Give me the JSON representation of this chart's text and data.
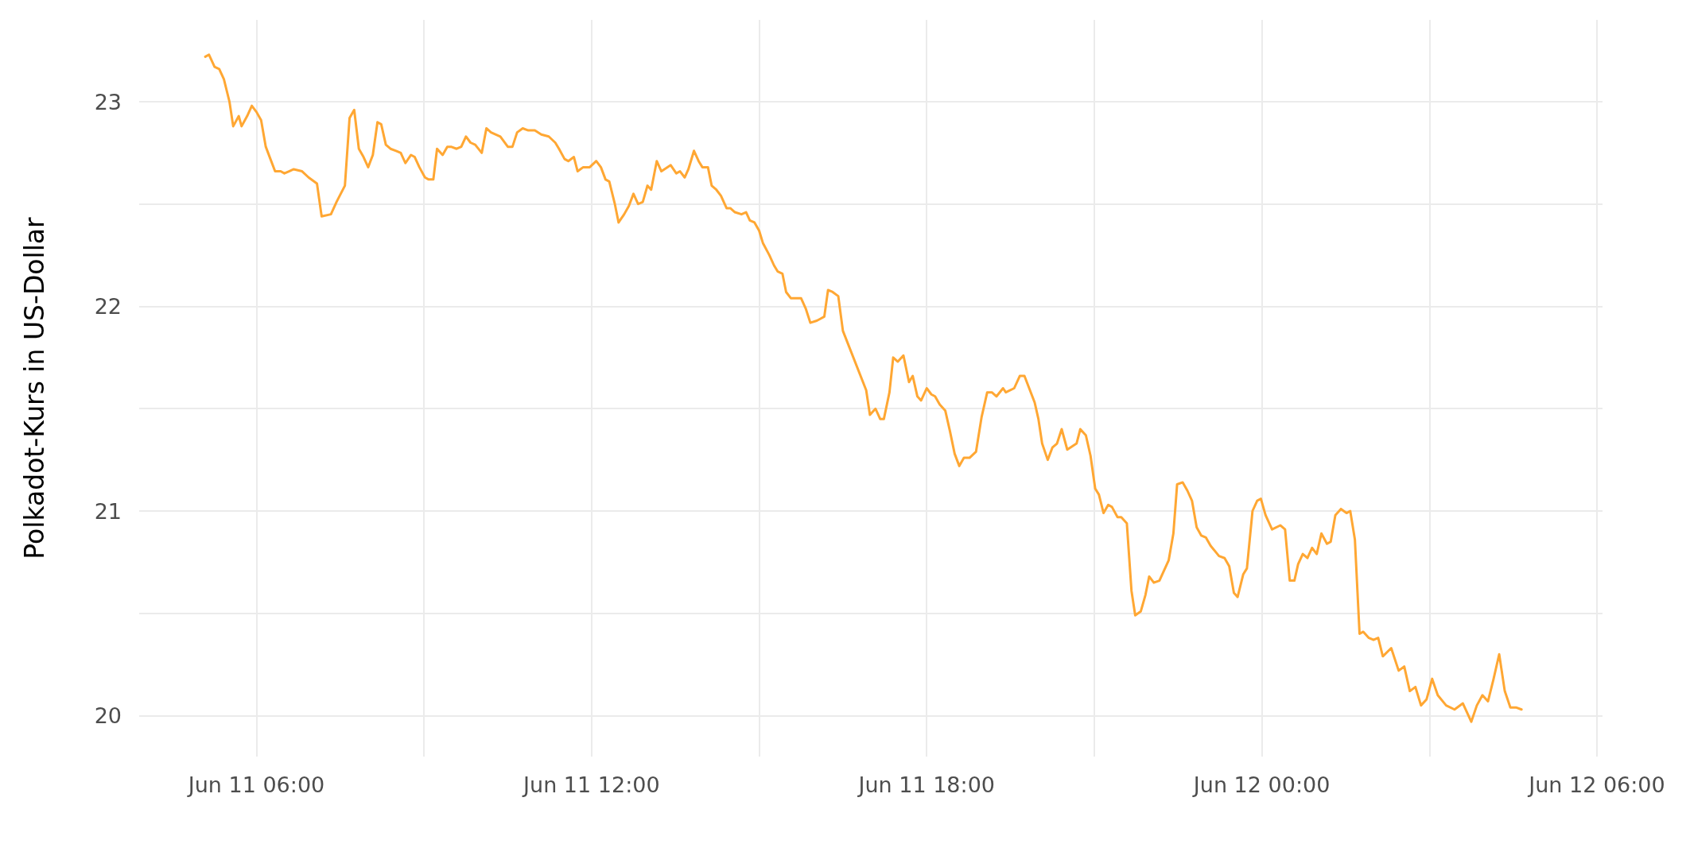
{
  "chart_data": {
    "type": "line",
    "ylabel": "Polkadot-Kurs in US-Dollar",
    "x": [
      "--06-11T05:05",
      "--06-11T05:09",
      "--06-11T05:15",
      "--06-11T05:20",
      "--06-11T05:25",
      "--06-11T05:31",
      "--06-11T05:35",
      "--06-11T05:41",
      "--06-11T05:44",
      "--06-11T05:50",
      "--06-11T05:55",
      "--06-11T06:00",
      "--06-11T06:05",
      "--06-11T06:10",
      "--06-11T06:15",
      "--06-11T06:20",
      "--06-11T06:26",
      "--06-11T06:30",
      "--06-11T06:35",
      "--06-11T06:40",
      "--06-11T06:49",
      "--06-11T06:56",
      "--06-11T07:05",
      "--06-11T07:10",
      "--06-11T07:20",
      "--06-11T07:26",
      "--06-11T07:35",
      "--06-11T07:40",
      "--06-11T07:45",
      "--06-11T07:50",
      "--06-11T07:55",
      "--06-11T08:00",
      "--06-11T08:05",
      "--06-11T08:10",
      "--06-11T08:14",
      "--06-11T08:19",
      "--06-11T08:24",
      "--06-11T08:30",
      "--06-11T08:35",
      "--06-11T08:40",
      "--06-11T08:46",
      "--06-11T08:50",
      "--06-11T08:55",
      "--06-11T09:01",
      "--06-11T09:05",
      "--06-11T09:10",
      "--06-11T09:14",
      "--06-11T09:20",
      "--06-11T09:25",
      "--06-11T09:29",
      "--06-11T09:35",
      "--06-11T09:40",
      "--06-11T09:45",
      "--06-11T09:50",
      "--06-11T09:55",
      "--06-11T10:02",
      "--06-11T10:07",
      "--06-11T10:12",
      "--06-11T10:22",
      "--06-11T10:30",
      "--06-11T10:35",
      "--06-11T10:40",
      "--06-11T10:46",
      "--06-11T10:52",
      "--06-11T10:59",
      "--06-11T11:06",
      "--06-11T11:14",
      "--06-11T11:21",
      "--06-11T11:25",
      "--06-11T11:31",
      "--06-11T11:35",
      "--06-11T11:41",
      "--06-11T11:45",
      "--06-11T11:51",
      "--06-11T11:58",
      "--06-11T12:05",
      "--06-11T12:10",
      "--06-11T12:15",
      "--06-11T12:19",
      "--06-11T12:25",
      "--06-11T12:29",
      "--06-11T12:35",
      "--06-11T12:40",
      "--06-11T12:45",
      "--06-11T12:50",
      "--06-11T12:55",
      "--06-11T13:00",
      "--06-11T13:04",
      "--06-11T13:10",
      "--06-11T13:15",
      "--06-11T13:25",
      "--06-11T13:31",
      "--06-11T13:35",
      "--06-11T13:40",
      "--06-11T13:44",
      "--06-11T13:50",
      "--06-11T13:55",
      "--06-11T13:59",
      "--06-11T14:05",
      "--06-11T14:09",
      "--06-11T14:14",
      "--06-11T14:19",
      "--06-11T14:25",
      "--06-11T14:29",
      "--06-11T14:34",
      "--06-11T14:41",
      "--06-11T14:46",
      "--06-11T14:50",
      "--06-11T14:55",
      "--06-11T15:00",
      "--06-11T15:04",
      "--06-11T15:11",
      "--06-11T15:16",
      "--06-11T15:20",
      "--06-11T15:25",
      "--06-11T15:29",
      "--06-11T15:34",
      "--06-11T15:45",
      "--06-11T15:50",
      "--06-11T15:55",
      "--06-11T16:02",
      "--06-11T16:06",
      "--06-11T16:10",
      "--06-11T16:14",
      "--06-11T16:19",
      "--06-11T16:25",
      "--06-11T16:30",
      "--06-11T16:55",
      "--06-11T16:59",
      "--06-11T17:05",
      "--06-11T17:10",
      "--06-11T17:14",
      "--06-11T17:20",
      "--06-11T17:24",
      "--06-11T17:29",
      "--06-11T17:35",
      "--06-11T17:41",
      "--06-11T17:45",
      "--06-11T17:50",
      "--06-11T17:54",
      "--06-11T18:00",
      "--06-11T18:05",
      "--06-11T18:09",
      "--06-11T18:14",
      "--06-11T18:20",
      "--06-11T18:25",
      "--06-11T18:30",
      "--06-11T18:35",
      "--06-11T18:40",
      "--06-11T18:46",
      "--06-11T18:53",
      "--06-11T18:59",
      "--06-11T19:05",
      "--06-11T19:10",
      "--06-11T19:15",
      "--06-11T19:22",
      "--06-11T19:25",
      "--06-11T19:34",
      "--06-11T19:40",
      "--06-11T19:45",
      "--06-11T19:56",
      "--06-11T20:00",
      "--06-11T20:04",
      "--06-11T20:10",
      "--06-11T20:15",
      "--06-11T20:20",
      "--06-11T20:25",
      "--06-11T20:31",
      "--06-11T20:41",
      "--06-11T20:45",
      "--06-11T20:51",
      "--06-11T20:56",
      "--06-11T21:01",
      "--06-11T21:05",
      "--06-11T21:10",
      "--06-11T21:15",
      "--06-11T21:19",
      "--06-11T21:25",
      "--06-11T21:29",
      "--06-11T21:35",
      "--06-11T21:40",
      "--06-11T21:44",
      "--06-11T21:50",
      "--06-11T21:55",
      "--06-11T21:59",
      "--06-11T22:04",
      "--06-11T22:10",
      "--06-11T22:20",
      "--06-11T22:25",
      "--06-11T22:29",
      "--06-11T22:35",
      "--06-11T22:40",
      "--06-11T22:45",
      "--06-11T22:50",
      "--06-11T22:55",
      "--06-11T23:00",
      "--06-11T23:05",
      "--06-11T23:14",
      "--06-11T23:20",
      "--06-11T23:25",
      "--06-11T23:30",
      "--06-11T23:34",
      "--06-11T23:40",
      "--06-11T23:44",
      "--06-11T23:50",
      "--06-11T23:55",
      "--06-11T23:59",
      "--06-12T00:04",
      "--06-12T00:11",
      "--06-12T00:20",
      "--06-12T00:25",
      "--06-12T00:30",
      "--06-12T00:35",
      "--06-12T00:39",
      "--06-12T00:44",
      "--06-12T00:49",
      "--06-12T00:54",
      "--06-12T00:59",
      "--06-12T01:04",
      "--06-12T01:10",
      "--06-12T01:14",
      "--06-12T01:19",
      "--06-12T01:25",
      "--06-12T01:31",
      "--06-12T01:35",
      "--06-12T01:40",
      "--06-12T01:45",
      "--06-12T01:49",
      "--06-12T01:55",
      "--06-12T02:00",
      "--06-12T02:05",
      "--06-12T02:10",
      "--06-12T02:19",
      "--06-12T02:27",
      "--06-12T02:33",
      "--06-12T02:39",
      "--06-12T02:45",
      "--06-12T02:51",
      "--06-12T02:57",
      "--06-12T03:03",
      "--06-12T03:09",
      "--06-12T03:18",
      "--06-12T03:27",
      "--06-12T03:36",
      "--06-12T03:45",
      "--06-12T03:51",
      "--06-12T03:57",
      "--06-12T04:03",
      "--06-12T04:09",
      "--06-12T04:15",
      "--06-12T04:21",
      "--06-12T04:27",
      "--06-12T04:33",
      "--06-12T04:39"
    ],
    "series": [
      {
        "color": "#ffa733",
        "values": [
          23.22,
          23.23,
          23.17,
          23.16,
          23.11,
          23.0,
          22.88,
          22.93,
          22.88,
          22.93,
          22.98,
          22.95,
          22.91,
          22.78,
          22.72,
          22.66,
          22.66,
          22.65,
          22.66,
          22.67,
          22.66,
          22.63,
          22.6,
          22.44,
          22.45,
          22.51,
          22.59,
          22.92,
          22.96,
          22.77,
          22.73,
          22.68,
          22.74,
          22.9,
          22.89,
          22.79,
          22.77,
          22.76,
          22.75,
          22.7,
          22.74,
          22.73,
          22.68,
          22.63,
          22.62,
          22.62,
          22.77,
          22.74,
          22.78,
          22.78,
          22.77,
          22.78,
          22.83,
          22.8,
          22.79,
          22.75,
          22.87,
          22.85,
          22.83,
          22.78,
          22.78,
          22.85,
          22.87,
          22.86,
          22.86,
          22.84,
          22.83,
          22.8,
          22.77,
          22.72,
          22.71,
          22.73,
          22.66,
          22.68,
          22.68,
          22.71,
          22.68,
          22.62,
          22.61,
          22.5,
          22.41,
          22.45,
          22.49,
          22.55,
          22.5,
          22.51,
          22.59,
          22.57,
          22.71,
          22.66,
          22.69,
          22.65,
          22.66,
          22.63,
          22.67,
          22.76,
          22.71,
          22.68,
          22.68,
          22.59,
          22.57,
          22.54,
          22.48,
          22.48,
          22.46,
          22.45,
          22.46,
          22.42,
          22.41,
          22.37,
          22.31,
          22.25,
          22.2,
          22.17,
          22.16,
          22.07,
          22.04,
          22.04,
          21.99,
          21.92,
          21.93,
          21.94,
          21.95,
          22.08,
          22.07,
          22.05,
          21.88,
          21.59,
          21.47,
          21.5,
          21.45,
          21.45,
          21.58,
          21.75,
          21.73,
          21.76,
          21.63,
          21.66,
          21.56,
          21.54,
          21.6,
          21.57,
          21.56,
          21.52,
          21.49,
          21.39,
          21.28,
          21.22,
          21.26,
          21.26,
          21.29,
          21.46,
          21.58,
          21.58,
          21.56,
          21.6,
          21.58,
          21.6,
          21.66,
          21.66,
          21.53,
          21.45,
          21.33,
          21.25,
          21.31,
          21.33,
          21.4,
          21.3,
          21.33,
          21.4,
          21.37,
          21.27,
          21.11,
          21.08,
          20.99,
          21.03,
          21.02,
          20.97,
          20.97,
          20.94,
          20.61,
          20.49,
          20.51,
          20.59,
          20.68,
          20.65,
          20.66,
          20.76,
          20.89,
          21.13,
          21.14,
          21.1,
          21.05,
          20.92,
          20.88,
          20.87,
          20.83,
          20.78,
          20.77,
          20.73,
          20.6,
          20.58,
          20.69,
          20.72,
          21.0,
          21.05,
          21.06,
          20.98,
          20.91,
          20.93,
          20.91,
          20.66,
          20.66,
          20.74,
          20.79,
          20.77,
          20.82,
          20.79,
          20.89,
          20.84,
          20.85,
          20.98,
          21.01,
          20.99,
          21.0,
          20.86,
          20.4,
          20.41,
          20.38,
          20.37,
          20.38,
          20.29,
          20.33,
          20.22,
          20.24,
          20.12,
          20.14,
          20.05,
          20.08,
          20.18,
          20.1,
          20.05,
          20.03,
          20.06,
          19.97,
          20.05,
          20.1,
          20.07,
          20.18,
          20.3,
          20.12,
          20.04,
          20.04,
          20.03
        ]
      }
    ],
    "xlim": [
      "--06-11T03:54",
      "--06-12T06:06"
    ],
    "xticks": [
      {
        "value": "--06-11T06:00",
        "label": "Jun 11 06:00"
      },
      {
        "value": "--06-11T09:00",
        "label": null
      },
      {
        "value": "--06-11T12:00",
        "label": "Jun 11 12:00"
      },
      {
        "value": "--06-11T15:00",
        "label": null
      },
      {
        "value": "--06-11T18:00",
        "label": "Jun 11 18:00"
      },
      {
        "value": "--06-11T21:00",
        "label": null
      },
      {
        "value": "--06-12T00:00",
        "label": "Jun 12 00:00"
      },
      {
        "value": "--06-12T03:00",
        "label": null
      },
      {
        "value": "--06-12T06:00",
        "label": "Jun 12 06:00"
      }
    ],
    "ylim": [
      19.8,
      23.4
    ],
    "yticks": [
      20,
      {
        "value": 20.5,
        "label": null
      },
      21,
      {
        "value": 21.5,
        "label": null
      },
      22,
      {
        "value": 22.5,
        "label": null
      },
      23
    ],
    "grid": true,
    "line_style": "solid",
    "marker": "none"
  }
}
